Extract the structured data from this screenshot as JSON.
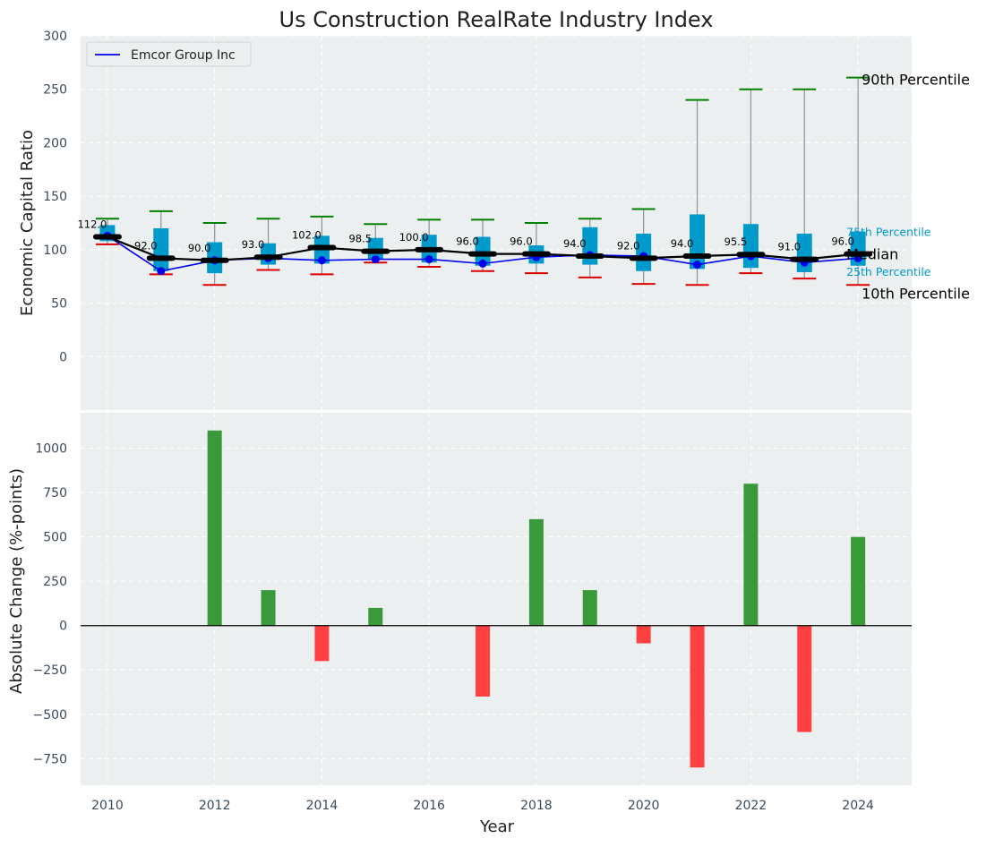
{
  "chart_data": [
    {
      "type": "box",
      "title": "Us Construction RealRate Industry Index",
      "ylabel": "Economic Capital Ratio",
      "ylim": [
        -50,
        300
      ],
      "yticks": [
        0,
        50,
        100,
        150,
        200,
        250,
        300
      ],
      "grid": true,
      "legend": {
        "position": "top-left",
        "entries": [
          "Emcor Group Inc"
        ]
      },
      "series_color": "#0000ee",
      "box_color": "#0099cc",
      "p90_color": "#008000",
      "p10_color": "#dd0000",
      "boxes": [
        {
          "year": 2010,
          "p10": 105,
          "p25": 108,
          "median": 112,
          "p75": 123,
          "p90": 129,
          "company": 113,
          "median_label": "112.0"
        },
        {
          "year": 2011,
          "p10": 77,
          "p25": 80,
          "median": 92,
          "p75": 120,
          "p90": 136,
          "company": 80,
          "median_label": "92.0"
        },
        {
          "year": 2012,
          "p10": 67,
          "p25": 78,
          "median": 90,
          "p75": 107,
          "p90": 125,
          "company": 90,
          "median_label": "90.0"
        },
        {
          "year": 2013,
          "p10": 81,
          "p25": 86,
          "median": 93,
          "p75": 106,
          "p90": 129,
          "company": 92,
          "median_label": "93.0"
        },
        {
          "year": 2014,
          "p10": 77,
          "p25": 87,
          "median": 102,
          "p75": 113,
          "p90": 131,
          "company": 90,
          "median_label": "102.0"
        },
        {
          "year": 2015,
          "p10": 88,
          "p25": 91,
          "median": 98.5,
          "p75": 111,
          "p90": 124,
          "company": 91,
          "median_label": "98.5"
        },
        {
          "year": 2016,
          "p10": 84,
          "p25": 88,
          "median": 100,
          "p75": 114,
          "p90": 128,
          "company": 91,
          "median_label": "100.0"
        },
        {
          "year": 2017,
          "p10": 80,
          "p25": 85,
          "median": 96,
          "p75": 112,
          "p90": 128,
          "company": 87,
          "median_label": "96.0"
        },
        {
          "year": 2018,
          "p10": 78,
          "p25": 87,
          "median": 96,
          "p75": 104,
          "p90": 125,
          "company": 93,
          "median_label": "96.0"
        },
        {
          "year": 2019,
          "p10": 74,
          "p25": 86,
          "median": 94,
          "p75": 121,
          "p90": 129,
          "company": 95,
          "median_label": "94.0"
        },
        {
          "year": 2020,
          "p10": 68,
          "p25": 80,
          "median": 92,
          "p75": 115,
          "p90": 138,
          "company": 94,
          "median_label": "92.0"
        },
        {
          "year": 2021,
          "p10": 67,
          "p25": 82,
          "median": 94,
          "p75": 133,
          "p90": 240,
          "company": 86,
          "median_label": "94.0"
        },
        {
          "year": 2022,
          "p10": 78,
          "p25": 83,
          "median": 95.5,
          "p75": 124,
          "p90": 250,
          "company": 94,
          "median_label": "95.5"
        },
        {
          "year": 2023,
          "p10": 73,
          "p25": 79,
          "median": 91,
          "p75": 115,
          "p90": 250,
          "company": 88,
          "median_label": "91.0"
        },
        {
          "year": 2024,
          "p10": 67,
          "p25": 85,
          "median": 96,
          "p75": 117,
          "p90": 261,
          "company": 92,
          "median_label": "96.0"
        }
      ],
      "annotations": {
        "p90": "90th Percentile",
        "p75": "75th Percentile",
        "median": "Median",
        "p25": "25th Percentile",
        "p10": "10th Percentile"
      }
    },
    {
      "type": "bar",
      "xlabel": "Year",
      "ylabel": "Absolute Change (%-points)",
      "ylim": [
        -900,
        1200
      ],
      "yticks": [
        -750,
        -500,
        -250,
        0,
        250,
        500,
        750,
        1000
      ],
      "ytick_labels": [
        "−750",
        "−500",
        "−250",
        "0",
        "250",
        "500",
        "750",
        "1000"
      ],
      "xlim": [
        2009.5,
        2025
      ],
      "xticks": [
        2010,
        2012,
        2014,
        2016,
        2018,
        2020,
        2022,
        2024
      ],
      "grid": true,
      "positive_color": "#3a9a3a",
      "negative_color": "#ff4040",
      "x": [
        2010,
        2011,
        2012,
        2013,
        2014,
        2015,
        2016,
        2017,
        2018,
        2019,
        2020,
        2021,
        2022,
        2023,
        2024
      ],
      "values": [
        0,
        0,
        1100,
        200,
        -200,
        100,
        0,
        -400,
        600,
        200,
        -100,
        -800,
        800,
        -600,
        500
      ]
    }
  ]
}
